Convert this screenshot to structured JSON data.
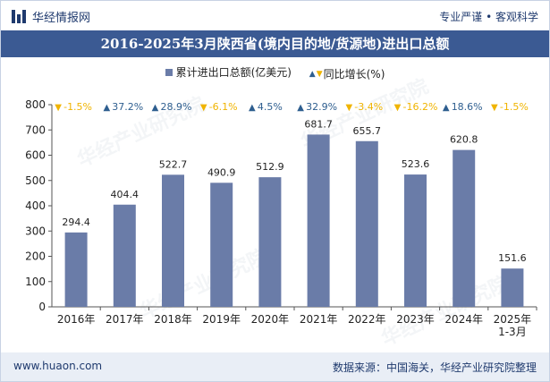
{
  "header": {
    "brand": "华经情报网",
    "tagline": "专业严谨 • 客观科学"
  },
  "title": "2016-2025年3月陕西省(境内目的地/货源地)进出口总额",
  "legend": {
    "series1": "累计进出口总额(亿美元)",
    "series2": "同比增长(%)"
  },
  "footer": {
    "url": "www.huaon.com",
    "source": "数据来源：中国海关，华经产业研究院整理"
  },
  "watermark": "华经产业研究院",
  "colors": {
    "bar": "#6a7ca8",
    "up": "#2e5e8f",
    "down": "#f0b400",
    "title_bg": "#3b5a93"
  },
  "chart_data": {
    "type": "bar",
    "categories": [
      "2016年",
      "2017年",
      "2018年",
      "2019年",
      "2020年",
      "2021年",
      "2022年",
      "2023年",
      "2024年",
      "2025年\n1-3月"
    ],
    "series": [
      {
        "name": "累计进出口总额(亿美元)",
        "values": [
          294.4,
          404.4,
          522.7,
          490.9,
          512.9,
          681.7,
          655.7,
          523.6,
          620.8,
          151.6
        ]
      },
      {
        "name": "同比增长(%)",
        "values": [
          -1.5,
          37.2,
          28.9,
          -6.1,
          4.5,
          32.9,
          -3.4,
          -16.2,
          18.6,
          -1.5
        ]
      }
    ],
    "growth_labels": [
      "-1.5%",
      "37.2%",
      "28.9%",
      "-6.1%",
      "4.5%",
      "32.9%",
      "-3.4%",
      "-16.2%",
      "18.6%",
      "-1.5%"
    ],
    "yticks": [
      0,
      100,
      200,
      300,
      400,
      500,
      600,
      700,
      800
    ],
    "ylim": [
      0,
      800
    ],
    "xlabel": "",
    "ylabel": ""
  }
}
